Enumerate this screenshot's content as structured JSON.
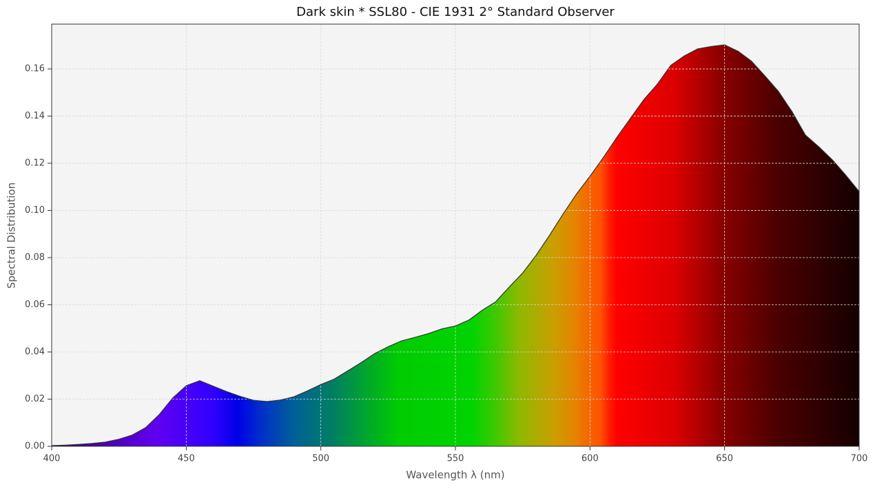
{
  "chart_data": {
    "type": "area",
    "title": "Dark skin * SSL80 - CIE 1931 2° Standard Observer",
    "x_label": "Wavelength λ (nm)",
    "y_label": "Spectral Distribution",
    "x": [
      400,
      405,
      410,
      415,
      420,
      425,
      430,
      435,
      440,
      445,
      450,
      455,
      460,
      465,
      470,
      475,
      480,
      485,
      490,
      495,
      500,
      505,
      510,
      515,
      520,
      525,
      530,
      535,
      540,
      545,
      550,
      555,
      560,
      565,
      570,
      575,
      580,
      585,
      590,
      595,
      600,
      605,
      610,
      615,
      620,
      625,
      630,
      635,
      640,
      645,
      650,
      655,
      660,
      665,
      670,
      675,
      680,
      685,
      690,
      695,
      700
    ],
    "values": [
      0.0003,
      0.0005,
      0.0008,
      0.0012,
      0.0018,
      0.003,
      0.0048,
      0.008,
      0.0135,
      0.0205,
      0.0257,
      0.0278,
      0.0255,
      0.0232,
      0.0212,
      0.0195,
      0.019,
      0.0196,
      0.021,
      0.0235,
      0.0262,
      0.0285,
      0.032,
      0.0355,
      0.0393,
      0.0422,
      0.0447,
      0.0462,
      0.0478,
      0.0498,
      0.051,
      0.0535,
      0.0577,
      0.0613,
      0.0675,
      0.0735,
      0.081,
      0.0895,
      0.0985,
      0.107,
      0.1145,
      0.1225,
      0.131,
      0.139,
      0.147,
      0.1535,
      0.1615,
      0.1655,
      0.1685,
      0.1695,
      0.1702,
      0.1675,
      0.1633,
      0.157,
      0.1505,
      0.142,
      0.132,
      0.127,
      0.1215,
      0.115,
      0.108
    ],
    "xlim": [
      400,
      700
    ],
    "ylim": [
      0,
      0.179
    ],
    "xticks": [
      400,
      450,
      500,
      550,
      600,
      650,
      700
    ],
    "yticks": [
      {
        "value": 0,
        "label": "0.00"
      },
      {
        "value": 0.02,
        "label": "0.02"
      },
      {
        "value": 0.04,
        "label": "0.04"
      },
      {
        "value": 0.06,
        "label": "0.06"
      },
      {
        "value": 0.08,
        "label": "0.08"
      },
      {
        "value": 0.1,
        "label": "0.10"
      },
      {
        "value": 0.12,
        "label": "0.12"
      },
      {
        "value": 0.14,
        "label": "0.14"
      },
      {
        "value": 0.16,
        "label": "0.16"
      }
    ],
    "grid": true,
    "line_color": "#333333"
  }
}
